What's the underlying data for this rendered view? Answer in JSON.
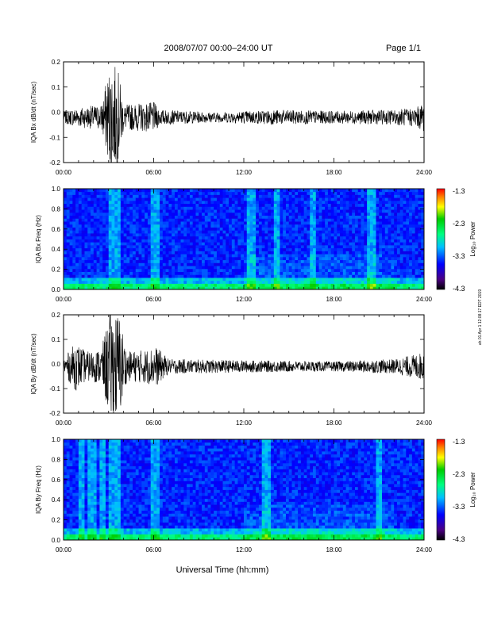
{
  "header": {
    "date_range": "2008/07/07  00:00–24:00 UT",
    "page": "Page 1/1"
  },
  "side_note": "ah 01 Apr 1 12:08:17 EDT 2019",
  "xlabel": "Universal Time (hh:mm)",
  "colorbar": {
    "label": "Log₁₀ Power",
    "ticks": [
      "-1.3",
      "-2.3",
      "-3.3",
      "-4.3"
    ]
  },
  "chart_data": [
    {
      "type": "line",
      "name": "bx-waveform",
      "ylabel": "IQA Bx dB/dt (nT/sec)",
      "ylim": [
        -0.2,
        0.2
      ],
      "yticks": [
        "-0.2",
        "-0.1",
        "0.0",
        "0.1",
        "0.2"
      ],
      "xticks": [
        "00:00",
        "06:00",
        "12:00",
        "18:00",
        "24:00"
      ],
      "xlim_hours": [
        0,
        24
      ],
      "baseline": -0.02,
      "envelope": [
        {
          "t": 0.0,
          "amp": 0.025
        },
        {
          "t": 1.0,
          "amp": 0.04
        },
        {
          "t": 2.5,
          "amp": 0.05
        },
        {
          "t": 3.1,
          "amp": 0.21
        },
        {
          "t": 3.6,
          "amp": 0.2
        },
        {
          "t": 4.0,
          "amp": 0.05
        },
        {
          "t": 6.0,
          "amp": 0.06
        },
        {
          "t": 6.5,
          "amp": 0.03
        },
        {
          "t": 10.0,
          "amp": 0.02
        },
        {
          "t": 14.0,
          "amp": 0.03
        },
        {
          "t": 18.0,
          "amp": 0.025
        },
        {
          "t": 22.0,
          "amp": 0.03
        },
        {
          "t": 23.5,
          "amp": 0.04
        },
        {
          "t": 24.0,
          "amp": 0.06
        }
      ]
    },
    {
      "type": "heatmap",
      "name": "bx-spectrogram",
      "ylabel": "IQA Bx Freq (Hz)",
      "ylim": [
        0.0,
        1.0
      ],
      "yticks": [
        "0.0",
        "0.2",
        "0.4",
        "0.6",
        "0.8",
        "1.0"
      ],
      "xticks": [
        "00:00",
        "06:00",
        "12:00",
        "18:00",
        "24:00"
      ],
      "xlim_hours": [
        0,
        24
      ],
      "clim_log_power": [
        -4.3,
        -1.3
      ],
      "bright_bands_hours": [
        3.2,
        3.5,
        6.1,
        12.5,
        14.2,
        16.6,
        20.5
      ]
    },
    {
      "type": "line",
      "name": "by-waveform",
      "ylabel": "IQA By dB/dt (nT/sec)",
      "ylim": [
        -0.2,
        0.2
      ],
      "yticks": [
        "-0.2",
        "-0.1",
        "0.0",
        "0.1",
        "0.2"
      ],
      "xticks": [
        "00:00",
        "06:00",
        "12:00",
        "18:00",
        "24:00"
      ],
      "xlim_hours": [
        0,
        24
      ],
      "baseline": -0.01,
      "envelope": [
        {
          "t": 0.0,
          "amp": 0.03
        },
        {
          "t": 0.8,
          "amp": 0.1
        },
        {
          "t": 1.5,
          "amp": 0.06
        },
        {
          "t": 2.5,
          "amp": 0.07
        },
        {
          "t": 3.1,
          "amp": 0.22
        },
        {
          "t": 3.7,
          "amp": 0.22
        },
        {
          "t": 4.2,
          "amp": 0.06
        },
        {
          "t": 5.5,
          "amp": 0.07
        },
        {
          "t": 6.2,
          "amp": 0.08
        },
        {
          "t": 7.0,
          "amp": 0.03
        },
        {
          "t": 12.0,
          "amp": 0.025
        },
        {
          "t": 18.0,
          "amp": 0.02
        },
        {
          "t": 22.0,
          "amp": 0.03
        },
        {
          "t": 23.5,
          "amp": 0.05
        },
        {
          "t": 24.0,
          "amp": 0.06
        }
      ]
    },
    {
      "type": "heatmap",
      "name": "by-spectrogram",
      "ylabel": "IQA By Freq (Hz)",
      "ylim": [
        0.0,
        1.0
      ],
      "yticks": [
        "0.0",
        "0.2",
        "0.4",
        "0.6",
        "0.8",
        "1.0"
      ],
      "xticks": [
        "00:00",
        "06:00",
        "12:00",
        "18:00",
        "24:00"
      ],
      "xlim_hours": [
        0,
        24
      ],
      "clim_log_power": [
        -4.3,
        -1.3
      ],
      "bright_bands_hours": [
        1.2,
        1.9,
        2.6,
        3.2,
        3.5,
        6.1,
        13.5,
        21.0
      ]
    }
  ]
}
